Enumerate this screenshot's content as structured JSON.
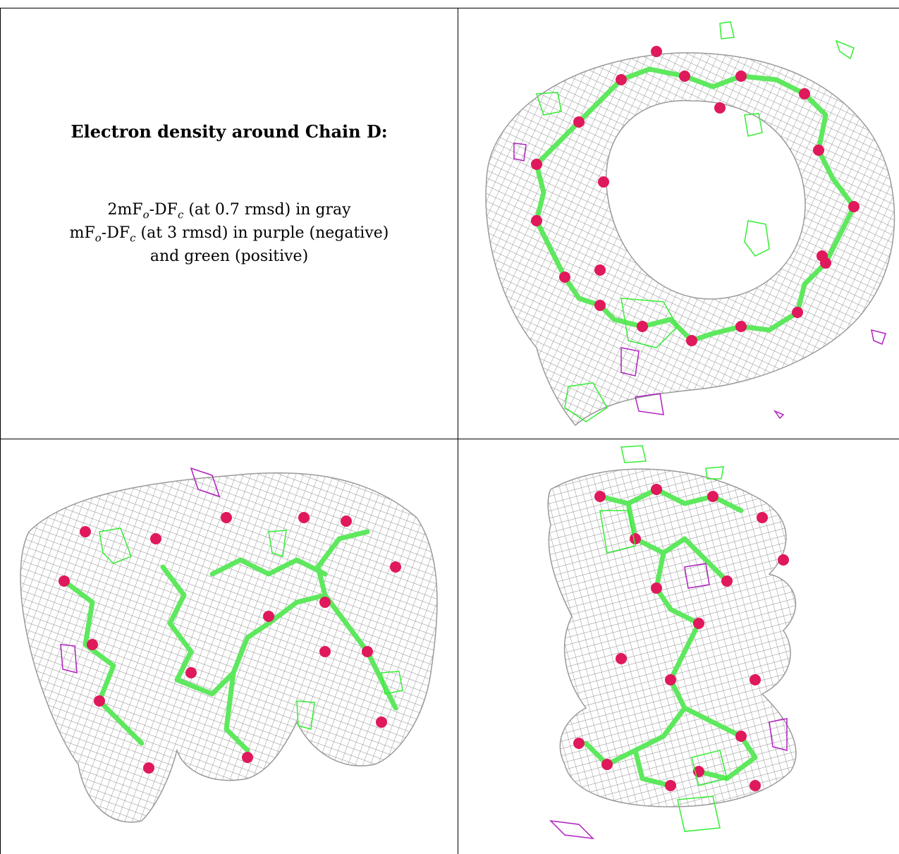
{
  "caption": {
    "title": "Electron density around Chain D:",
    "line1_prefix": "2mF",
    "line1_sub_o": "o",
    "line1_mid": "-DF",
    "line1_sub_c": "c",
    "line1_suffix": " (at 0.7 rmsd) in gray",
    "line2_prefix": "mF",
    "line2_sub_o": "o",
    "line2_mid": "-DF",
    "line2_sub_c": "c",
    "line2_suffix": " (at 3 rmsd) in purple (negative)",
    "line3": "and green (positive)"
  },
  "colors": {
    "density_2fofc": "#8a8a8a",
    "difference_positive": "#33ee33",
    "difference_negative": "#b020c0",
    "carbon_sticks": "#5ee85e",
    "oxygen_atoms": "#e0185c",
    "grid_line": "#000000"
  },
  "panels": [
    {
      "view": "top"
    },
    {
      "view": "side-a"
    },
    {
      "view": "side-b"
    }
  ]
}
